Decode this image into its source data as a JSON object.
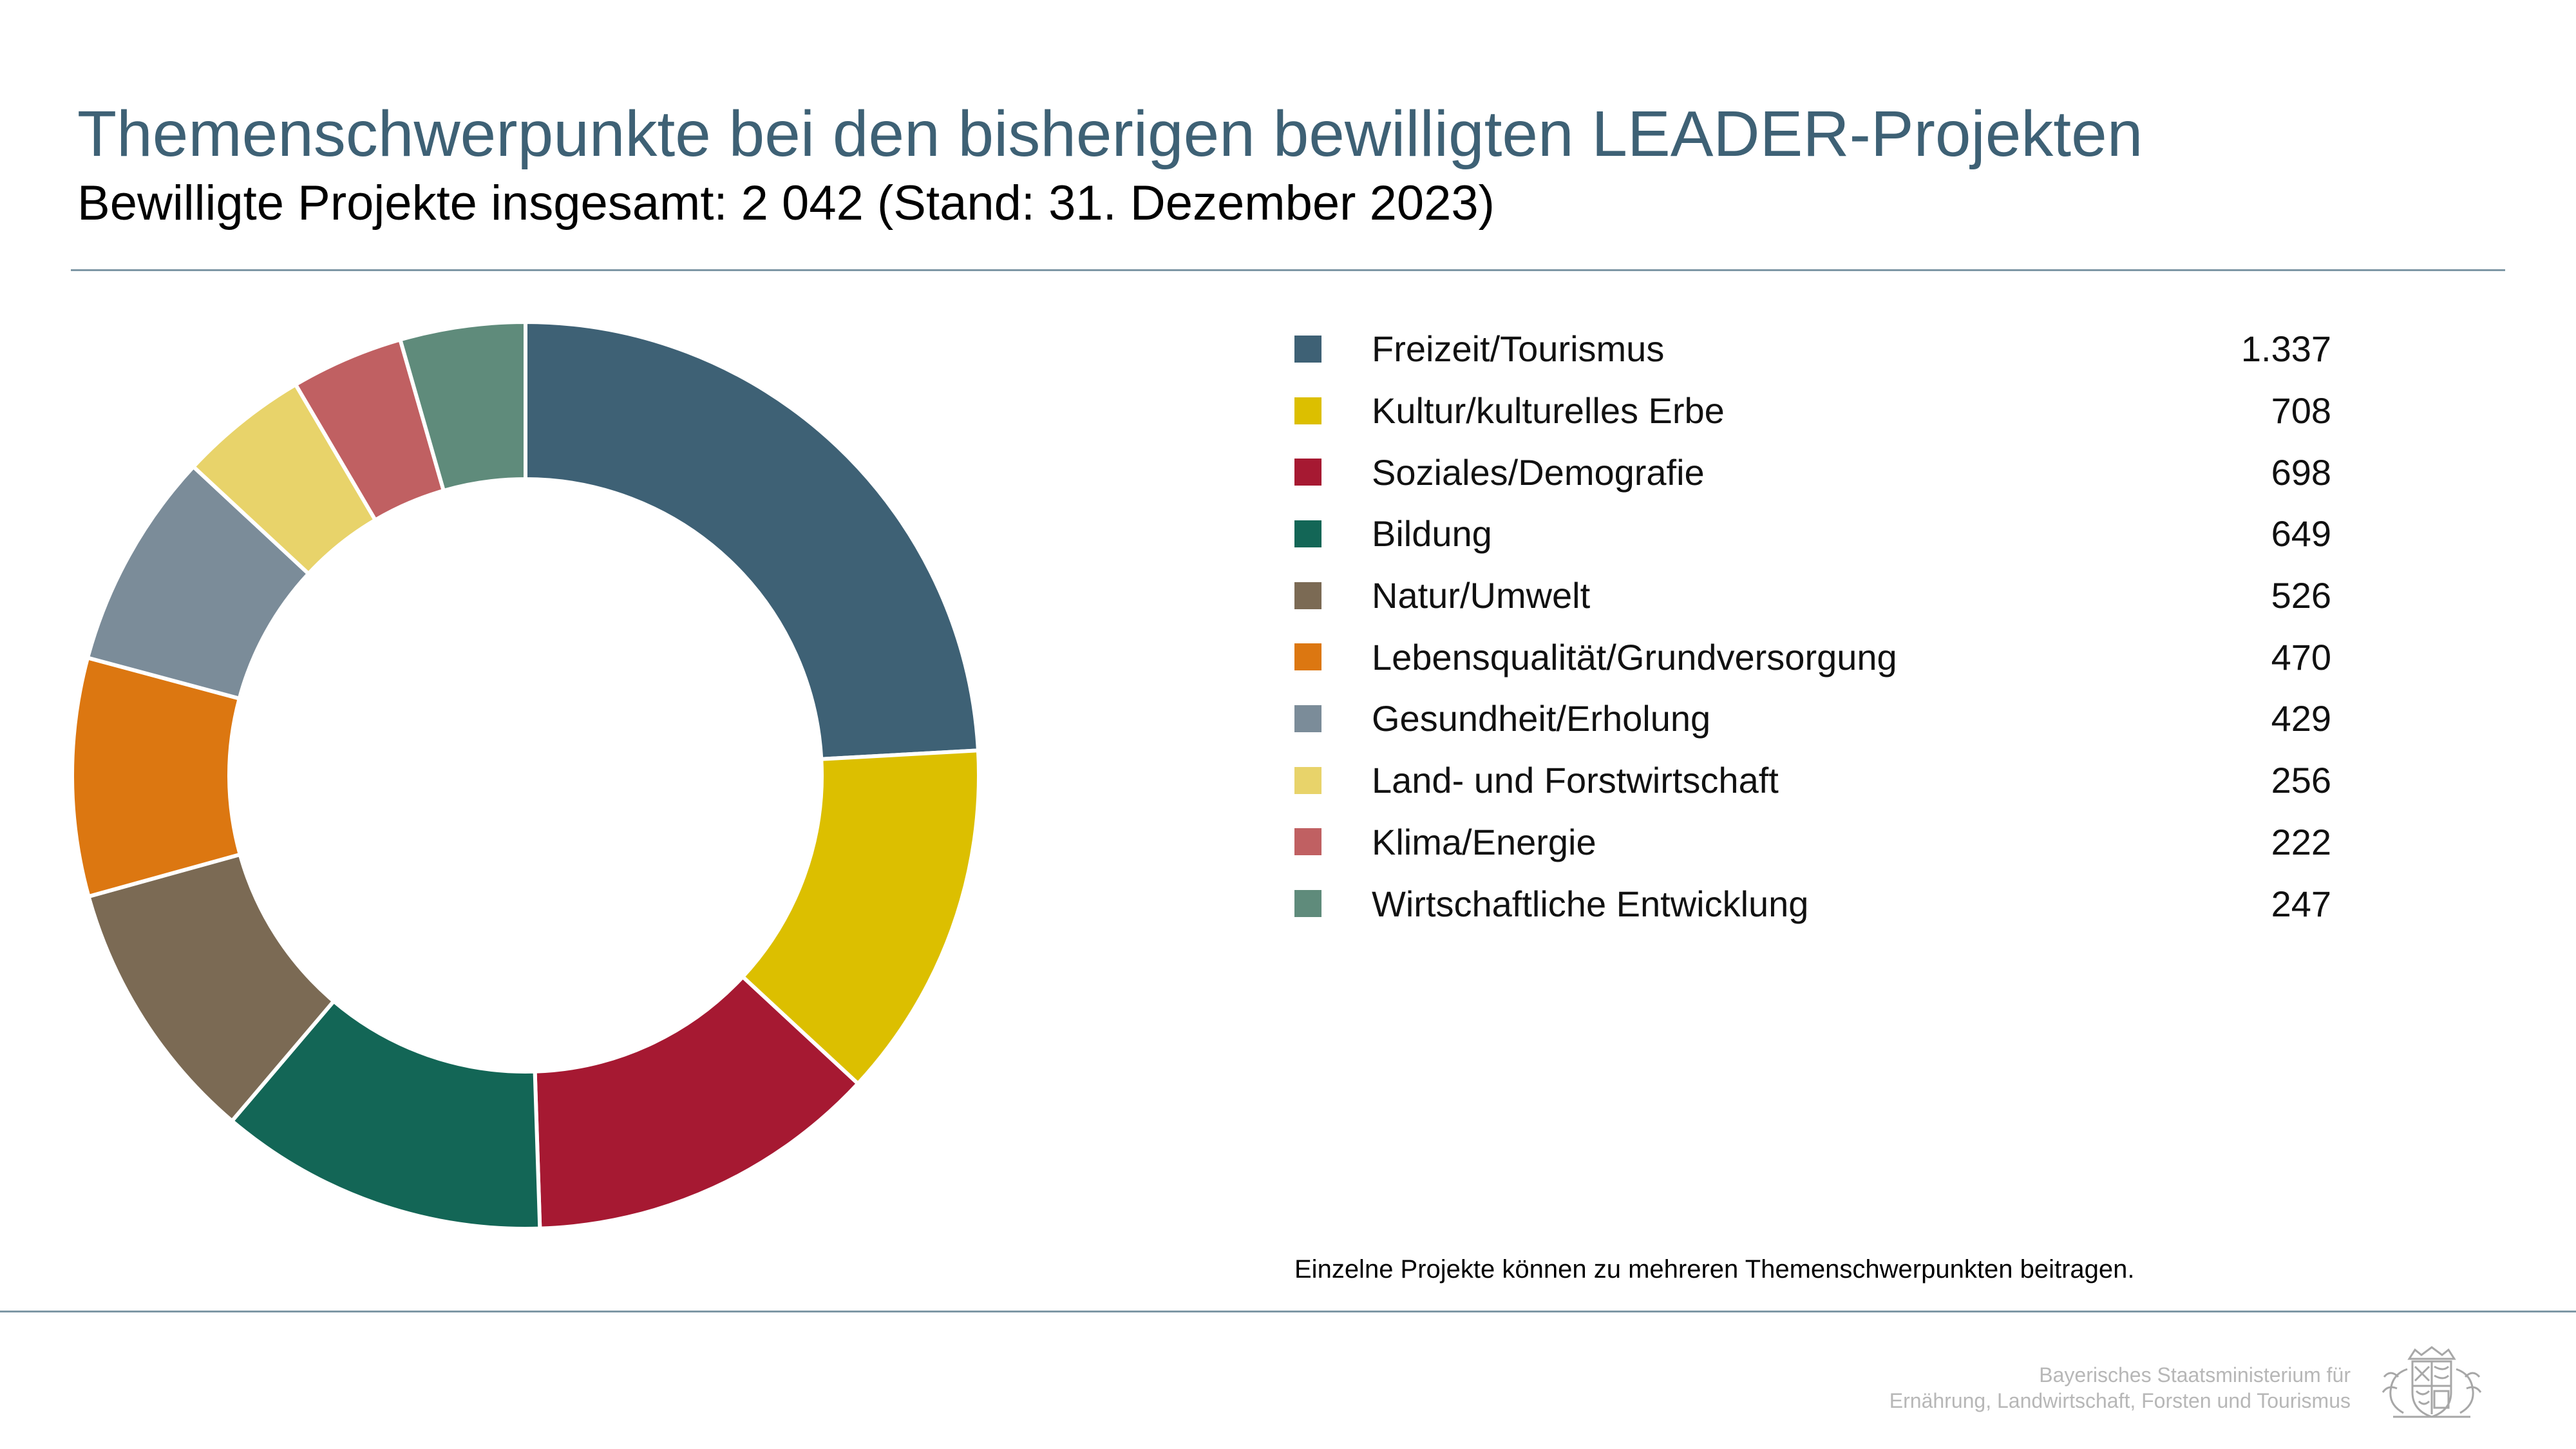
{
  "header": {
    "title": "Themenschwerpunkte bei den bisherigen bewilligten LEADER-Projekten",
    "subtitle": "Bewilligte Projekte insgesamt: 2 042 (Stand: 31. Dezember 2023)"
  },
  "chart_data": {
    "type": "pie",
    "variant": "donut",
    "labels": [
      "Freizeit/Tourismus",
      "Kultur/kulturelles Erbe",
      "Soziales/Demografie",
      "Bildung",
      "Natur/Umwelt",
      "Lebensqualität/Grundversorgung",
      "Gesundheit/Erholung",
      "Land- und Forstwirtschaft",
      "Klima/Energie",
      "Wirtschaftliche Entwicklung"
    ],
    "values": [
      1337,
      708,
      698,
      649,
      526,
      470,
      429,
      256,
      222,
      247
    ],
    "value_labels": [
      "1.337",
      "708",
      "698",
      "649",
      "526",
      "470",
      "429",
      "256",
      "222",
      "247"
    ],
    "colors": [
      "#3e6175",
      "#dcbf00",
      "#a61932",
      "#136656",
      "#7b6a54",
      "#dc7711",
      "#7b8c99",
      "#e8d36a",
      "#c06062",
      "#5f8b7b"
    ],
    "legend_position": "right"
  },
  "note": "Einzelne Projekte können zu mehreren Themenschwerpunkten beitragen.",
  "footer": {
    "ministry_line1": "Bayerisches Staatsministerium für",
    "ministry_line2": "Ernährung, Landwirtschaft, Forsten und Tourismus",
    "logo": "bavarian-coat-of-arms-icon"
  }
}
